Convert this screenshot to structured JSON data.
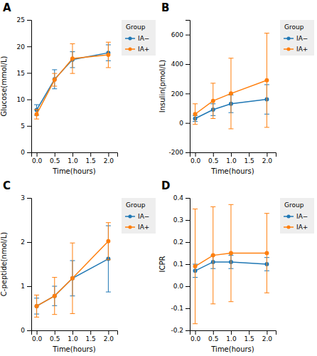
{
  "chart_data": [
    {
      "type": "line",
      "title": "A",
      "xlabel": "Time(hours)",
      "ylabel": "Glucose(mmol/L)",
      "x": [
        0.0,
        0.5,
        1.0,
        2.0
      ],
      "xlim": [
        -0.15,
        2.25
      ],
      "xticks": [
        {
          "value": 0,
          "label": "0.0"
        },
        0.5,
        {
          "value": 1,
          "label": "1.0"
        },
        1.5,
        {
          "value": 2,
          "label": "2.0"
        }
      ],
      "ylim": [
        0,
        25
      ],
      "yticks": [
        0,
        5,
        10,
        15,
        20,
        25
      ],
      "grid": false,
      "legend": "right",
      "legend_title": "Group",
      "series": [
        {
          "name": "IA−",
          "marker": "circle",
          "values": [
            8.0,
            13.8,
            17.5,
            18.8
          ],
          "errors": [
            1.0,
            1.8,
            1.5,
            1.5
          ]
        },
        {
          "name": "IA+",
          "marker": "circle",
          "values": [
            7.2,
            13.7,
            17.7,
            18.4
          ],
          "errors": [
            0.9,
            1.2,
            2.8,
            2.4
          ]
        }
      ]
    },
    {
      "type": "line",
      "title": "B",
      "xlabel": "Time(hours)",
      "ylabel": "Insulin(pmol/L)",
      "x": [
        0.0,
        0.5,
        1.0,
        2.0
      ],
      "xlim": [
        -0.15,
        2.25
      ],
      "xticks": [
        {
          "value": 0,
          "label": "0.0"
        },
        0.5,
        {
          "value": 1,
          "label": "1.0"
        },
        1.5,
        {
          "value": 2,
          "label": "2.0"
        }
      ],
      "ylim": [
        -200,
        700
      ],
      "yticks": [
        -200,
        0,
        200,
        400,
        600
      ],
      "grid": false,
      "legend": "right",
      "legend_title": "Group",
      "series": [
        {
          "name": "IA−",
          "marker": "circle",
          "values": [
            30,
            90,
            130,
            160
          ],
          "errors": [
            20,
            40,
            60,
            100
          ]
        },
        {
          "name": "IA+",
          "marker": "circle",
          "values": [
            60,
            150,
            200,
            290
          ],
          "errors": [
            70,
            120,
            240,
            320
          ]
        }
      ]
    },
    {
      "type": "line",
      "title": "C",
      "xlabel": "Time(hours)",
      "ylabel": "C-peptide(nmol/L)",
      "x": [
        0.0,
        0.5,
        1.0,
        2.0
      ],
      "xlim": [
        -0.15,
        2.25
      ],
      "xticks": [
        {
          "value": 0,
          "label": "0.0"
        },
        0.5,
        {
          "value": 1,
          "label": "1.0"
        },
        1.5,
        {
          "value": 2,
          "label": "2.0"
        }
      ],
      "ylim": [
        0,
        3
      ],
      "yticks": [
        0,
        1,
        2,
        3
      ],
      "grid": false,
      "legend": "right",
      "legend_title": "Group",
      "series": [
        {
          "name": "IA−",
          "marker": "circle",
          "values": [
            0.55,
            0.78,
            1.18,
            1.62
          ],
          "errors": [
            0.18,
            0.22,
            0.4,
            0.75
          ]
        },
        {
          "name": "IA+",
          "marker": "circle",
          "values": [
            0.55,
            0.78,
            1.18,
            2.02
          ],
          "errors": [
            0.25,
            0.42,
            0.8,
            0.42
          ]
        }
      ]
    },
    {
      "type": "line",
      "title": "D",
      "xlabel": "Time(hours)",
      "ylabel": "ICPR",
      "x": [
        0.0,
        0.5,
        1.0,
        2.0
      ],
      "xlim": [
        -0.15,
        2.25
      ],
      "xticks": [
        {
          "value": 0,
          "label": "0.0"
        },
        0.5,
        {
          "value": 1,
          "label": "1.0"
        },
        1.5,
        {
          "value": 2,
          "label": "2.0"
        }
      ],
      "ylim": [
        -0.2,
        0.4
      ],
      "yticks": [
        -0.2,
        -0.1,
        {
          "value": 0.0,
          "label": "0.0"
        },
        0.1,
        0.2,
        0.3,
        0.4
      ],
      "grid": false,
      "legend": "right",
      "legend_title": "Group",
      "series": [
        {
          "name": "IA−",
          "marker": "circle",
          "values": [
            0.07,
            0.11,
            0.11,
            0.1
          ],
          "errors": [
            0.03,
            0.03,
            0.03,
            0.03
          ]
        },
        {
          "name": "IA+",
          "marker": "circle",
          "values": [
            0.09,
            0.14,
            0.15,
            0.15
          ],
          "errors": [
            0.26,
            0.22,
            0.22,
            0.18
          ]
        }
      ]
    }
  ]
}
